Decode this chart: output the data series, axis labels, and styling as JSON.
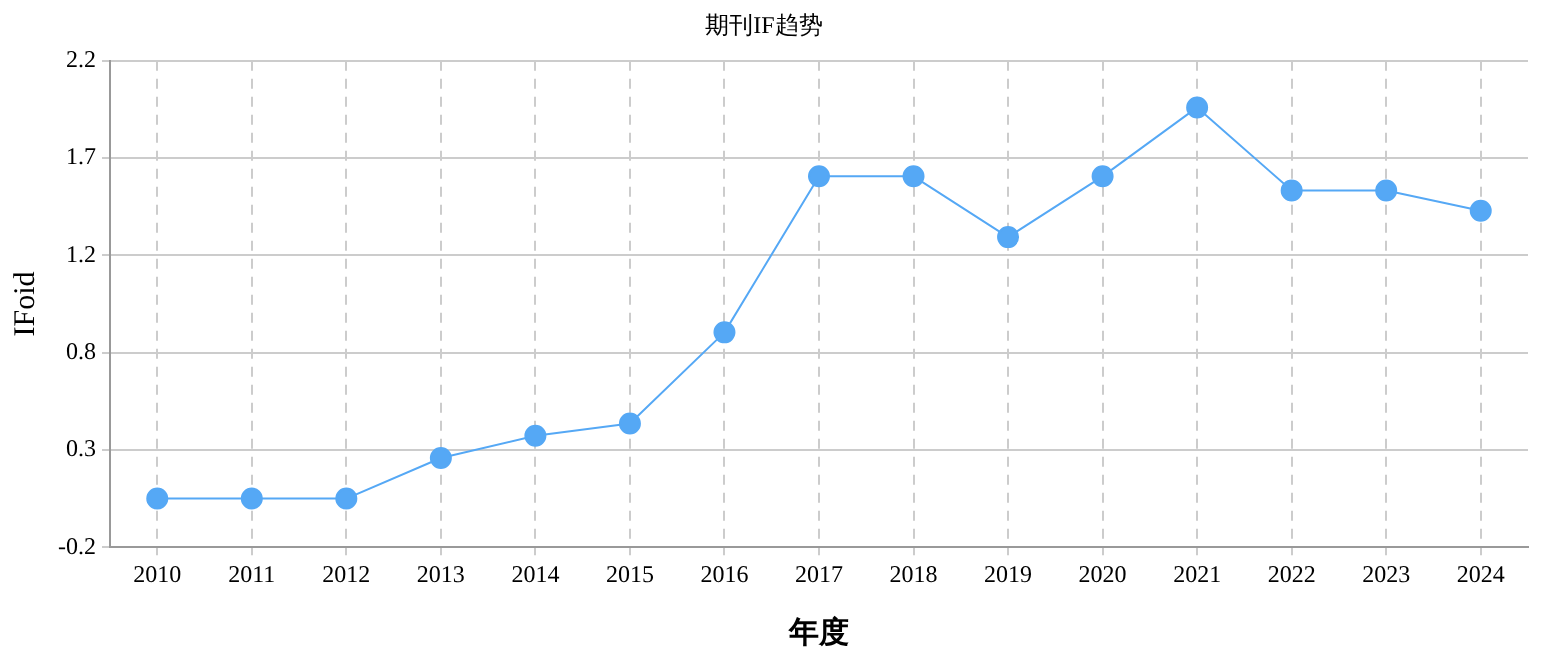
{
  "chart_data": {
    "type": "line",
    "title": "期刊IF趋势",
    "xlabel": "年度",
    "ylabel": "IFoid",
    "categories": [
      "2010",
      "2011",
      "2012",
      "2013",
      "2014",
      "2015",
      "2016",
      "2017",
      "2018",
      "2019",
      "2020",
      "2021",
      "2022",
      "2023",
      "2024"
    ],
    "series": [
      {
        "color": "#55a8f5",
        "values": [
          0.04,
          0.04,
          0.04,
          0.24,
          0.35,
          0.41,
          0.86,
          1.63,
          1.63,
          1.33,
          1.63,
          1.97,
          1.56,
          1.56,
          1.46
        ]
      }
    ],
    "ylim": [
      -0.2,
      2.2
    ],
    "yticks": [
      -0.2,
      {
        "value": 0.28,
        "label": "0.3"
      },
      {
        "value": 0.76,
        "label": "0.8"
      },
      {
        "value": 1.24,
        "label": "1.2"
      },
      {
        "value": 1.72,
        "label": "1.7"
      },
      2.2
    ],
    "grid": true,
    "marker": "circle",
    "line_style": "solid",
    "legend": false
  }
}
